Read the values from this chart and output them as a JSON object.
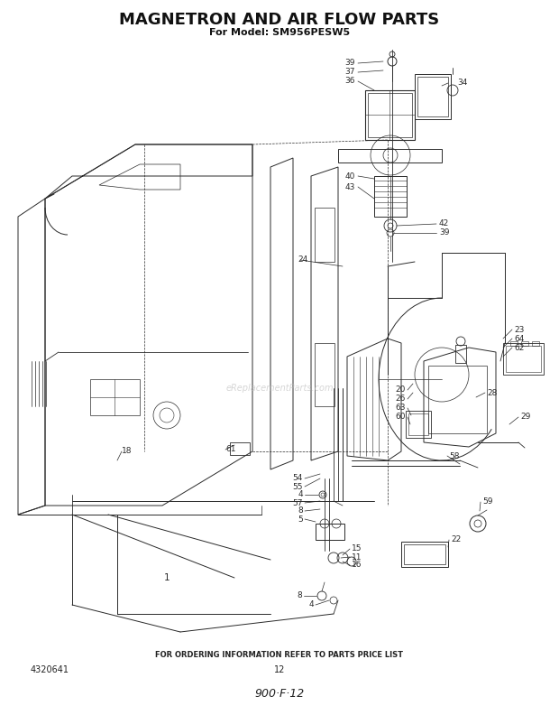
{
  "title": "MAGNETRON AND AIR FLOW PARTS",
  "subtitle": "For Model: SM956PESW5",
  "footer_text": "FOR ORDERING INFORMATION REFER TO PARTS PRICE LIST",
  "part_number_left": "4320641",
  "page_number": "12",
  "bottom_text": "900·F·12",
  "background_color": "#ffffff",
  "title_fontsize": 13,
  "subtitle_fontsize": 8,
  "watermark": "eReplacementParts.com",
  "watermark_color": "#bbbbbb",
  "line_color": "#2a2a2a",
  "label_fontsize": 6.5
}
